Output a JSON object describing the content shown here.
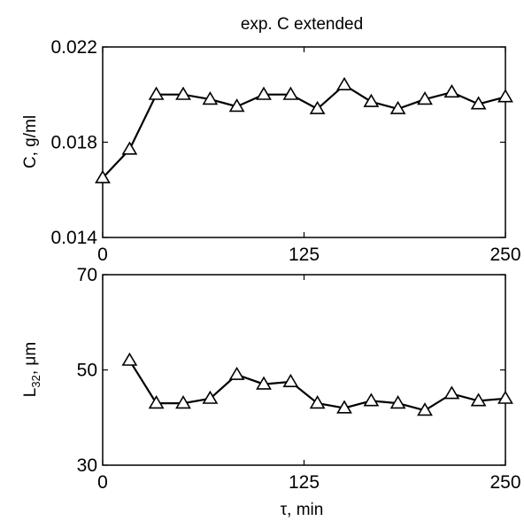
{
  "chart_data": [
    {
      "type": "line",
      "title": "exp. C extended",
      "xlabel": "",
      "ylabel": "C, g/ml",
      "xlim": [
        0,
        250
      ],
      "ylim": [
        0.014,
        0.022
      ],
      "xticks": [
        "0",
        "125",
        "250"
      ],
      "yticks": [
        "0.014",
        "0.018",
        "0.022"
      ],
      "marker": "triangle",
      "grid": false,
      "x": [
        0,
        16.7,
        33.3,
        50,
        66.7,
        83.3,
        100,
        116.7,
        133.3,
        150,
        166.7,
        183.3,
        200,
        216.7,
        233.3,
        250
      ],
      "y": [
        0.0165,
        0.0177,
        0.02,
        0.02,
        0.0198,
        0.0195,
        0.02,
        0.02,
        0.0194,
        0.0204,
        0.0197,
        0.0194,
        0.0198,
        0.0201,
        0.0196,
        0.0199
      ]
    },
    {
      "type": "line",
      "title": "",
      "xlabel": "τ, min",
      "ylabel": "L32, μm",
      "ylabel_main": "L",
      "ylabel_sub": "32",
      "ylabel_rest": ", μm",
      "xlim": [
        0,
        250
      ],
      "ylim": [
        30,
        70
      ],
      "xticks": [
        "0",
        "125",
        "250"
      ],
      "yticks": [
        "30",
        "50",
        "70"
      ],
      "marker": "triangle",
      "grid": false,
      "x": [
        16.7,
        33.3,
        50,
        66.7,
        83.3,
        100,
        116.7,
        133.3,
        150,
        166.7,
        183.3,
        200,
        216.7,
        233.3,
        250
      ],
      "y": [
        52,
        43,
        43,
        44,
        49,
        47,
        47.5,
        43,
        42,
        43.5,
        43,
        41.5,
        45,
        43.5,
        44
      ]
    }
  ]
}
